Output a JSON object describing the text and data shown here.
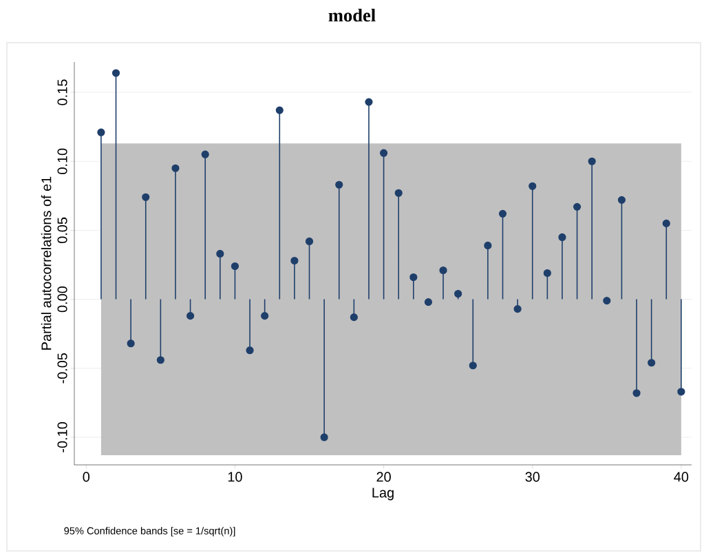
{
  "chart_data": {
    "type": "lollipop",
    "title": "model",
    "xlabel": "Lag",
    "ylabel": "Partial autocorrelations of e1",
    "annotations": [
      "95% Confidence bands [se = 1/sqrt(n)]"
    ],
    "x": [
      1,
      2,
      3,
      4,
      5,
      6,
      7,
      8,
      9,
      10,
      11,
      12,
      13,
      14,
      15,
      16,
      17,
      18,
      19,
      20,
      21,
      22,
      23,
      24,
      25,
      26,
      27,
      28,
      29,
      30,
      31,
      32,
      33,
      34,
      35,
      36,
      37,
      38,
      39,
      40
    ],
    "series": [
      {
        "color": "#1f3f6b",
        "values": [
          0.121,
          0.164,
          -0.032,
          0.074,
          -0.044,
          0.095,
          -0.012,
          0.105,
          0.033,
          0.024,
          -0.037,
          -0.012,
          0.137,
          0.028,
          0.042,
          -0.1,
          0.083,
          -0.013,
          0.143,
          0.106,
          0.077,
          0.016,
          -0.002,
          0.021,
          0.004,
          -0.048,
          0.039,
          0.062,
          -0.007,
          0.082,
          0.019,
          0.045,
          0.067,
          0.1,
          -0.001,
          0.072,
          -0.068,
          -0.046,
          0.055,
          -0.067
        ]
      }
    ],
    "bands": [
      {
        "axis": "y",
        "from": -0.113,
        "to": 0.113,
        "color": "#c0c0c0"
      }
    ],
    "xlim": [
      -0.8,
      40.7
    ],
    "ylim": [
      -0.12,
      0.172
    ],
    "xticks": [
      0,
      10,
      20,
      30,
      40
    ],
    "yticks": [
      {
        "value": -0.1,
        "label": "-0.10"
      },
      {
        "value": -0.05,
        "label": "-0.05"
      },
      {
        "value": 0,
        "label": "0.00"
      },
      {
        "value": 0.05,
        "label": "0.05"
      },
      {
        "value": 0.1,
        "label": "0.10"
      },
      {
        "value": 0.15,
        "label": "0.15"
      }
    ],
    "grid": "y",
    "marker": "circle"
  }
}
